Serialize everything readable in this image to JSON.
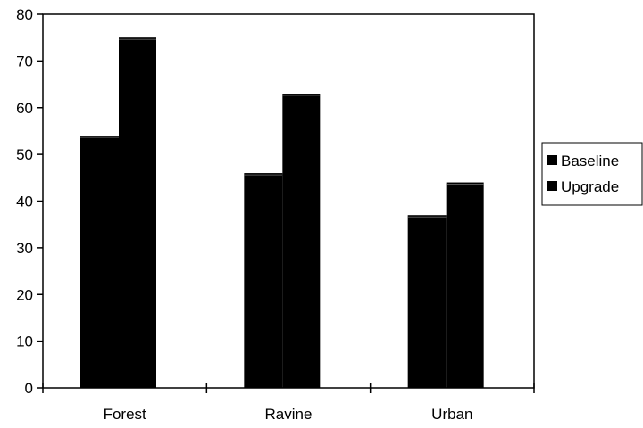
{
  "chart_data": {
    "type": "bar",
    "title": "",
    "xlabel": "",
    "ylabel": "",
    "categories": [
      "Forest",
      "Ravine",
      "Urban"
    ],
    "series": [
      {
        "name": "Baseline",
        "values": [
          54,
          46,
          37
        ],
        "color": "#000000"
      },
      {
        "name": "Upgrade",
        "values": [
          75,
          63,
          44
        ],
        "color": "#000000"
      }
    ],
    "ylim": [
      0,
      80
    ],
    "yticks": [
      0,
      10,
      20,
      30,
      40,
      50,
      60,
      70,
      80
    ],
    "grid": false,
    "legend_position": "right"
  }
}
